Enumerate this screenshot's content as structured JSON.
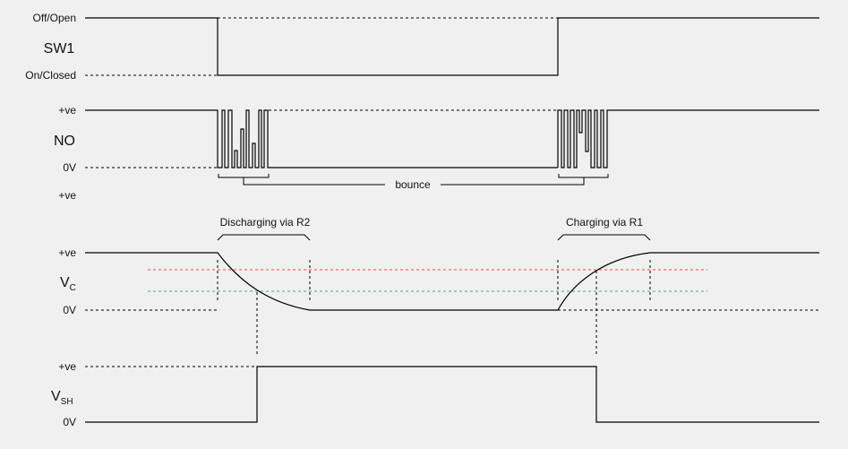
{
  "sw1": {
    "top_label": "Off/Open",
    "name": "SW1",
    "bottom_label": "On/Closed"
  },
  "no": {
    "top_label": "+ve",
    "name": "NO",
    "bottom_label": "0V",
    "bounce_label": "bounce"
  },
  "vc": {
    "upper_label": "+ve",
    "top_label": "+ve",
    "name_main": "V",
    "name_sub": "C",
    "bottom_label": "0V",
    "discharge_label": "Discharging via R2",
    "charge_label": "Charging via R1",
    "colors": {
      "upper_threshold": "#e05040",
      "lower_threshold": "#40b070"
    }
  },
  "vsh": {
    "top_label": "+ve",
    "name_main": "V",
    "name_sub": "SH",
    "bottom_label": "0V"
  }
}
